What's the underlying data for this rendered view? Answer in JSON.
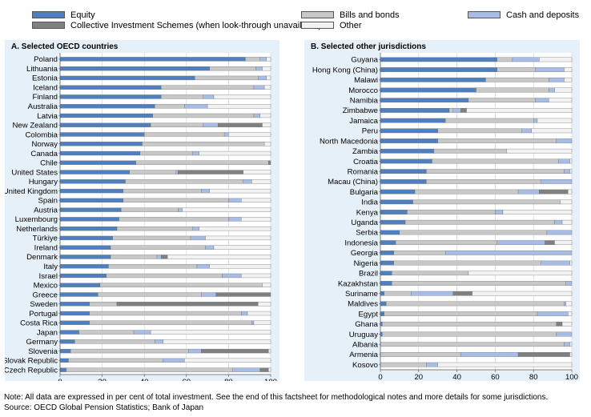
{
  "legend": {
    "items": [
      {
        "label": "Equity",
        "color": "#4f7fbf"
      },
      {
        "label": "Collective Investment Schemes (when look-through unavailable)",
        "color": "#808080"
      },
      {
        "label": "Bills and bonds",
        "color": "#c8c8c8"
      },
      {
        "label": "Other",
        "color": "#f2f2f2"
      },
      {
        "label": "Cash and deposits",
        "color": "#a7bde6"
      }
    ]
  },
  "colors": {
    "equity": "#4f7fbf",
    "cis": "#808080",
    "bills": "#c8c8c8",
    "other": "#f2f2f2",
    "cash": "#a7bde6",
    "panel_bg": "#e6f0f8"
  },
  "chart_data": [
    {
      "type": "bar",
      "orientation": "horizontal",
      "stacked": true,
      "title": "A. Selected OECD countries",
      "xlim": [
        0,
        100
      ],
      "xticks": [
        0,
        20,
        40,
        60,
        80,
        100
      ],
      "series_order": [
        "equity",
        "bills",
        "cash",
        "cis",
        "other"
      ],
      "categories": [
        "Poland",
        "Lithuania",
        "Estonia",
        "Iceland",
        "Finland",
        "Australia",
        "Latvia",
        "New Zealand",
        "Colombia",
        "Norway",
        "Canada",
        "Chile",
        "United States",
        "Hungary",
        "United Kingdom",
        "Spain",
        "Austria",
        "Luxembourg",
        "Netherlands",
        "Türkiye",
        "Ireland",
        "Denmark",
        "Italy",
        "Israel",
        "Mexico",
        "Greece",
        "Sweden",
        "Portugal",
        "Costa Rica",
        "Japan",
        "Germany",
        "Slovenia",
        "Slovak Republic",
        "Czech Republic"
      ],
      "series": [
        {
          "key": "equity",
          "name": "Equity",
          "values": [
            88,
            71,
            64,
            48,
            48,
            45,
            44,
            43,
            40,
            39,
            38,
            36,
            33,
            31,
            30,
            30,
            29,
            28,
            27,
            25,
            24,
            24,
            23,
            22,
            19,
            18,
            14,
            14,
            14,
            9,
            7,
            5,
            4,
            3
          ]
        },
        {
          "key": "bills",
          "name": "Bills and bonds",
          "values": [
            7,
            22,
            30,
            44,
            20,
            14,
            48,
            25,
            38,
            58,
            25,
            63,
            22,
            56,
            37,
            50,
            27,
            52,
            36,
            37,
            45,
            22,
            42,
            55,
            77,
            49,
            13,
            72,
            77,
            26,
            38,
            56,
            45,
            79
          ]
        },
        {
          "key": "cash",
          "name": "Cash and deposits",
          "values": [
            3,
            3,
            4,
            5,
            5,
            11,
            3,
            7,
            2,
            0,
            3,
            0,
            1,
            4,
            4,
            6,
            2,
            6,
            3,
            7,
            4,
            2,
            6,
            9,
            0,
            7,
            0,
            3,
            1,
            8,
            4,
            6,
            10,
            13
          ]
        },
        {
          "key": "cis",
          "name": "Collective Investment Schemes (when look-through unavailable)",
          "values": [
            0,
            0,
            0,
            0,
            0,
            0,
            0,
            21,
            0,
            0,
            0,
            1,
            31,
            0,
            0,
            0,
            0,
            0,
            0,
            0,
            0,
            3,
            0,
            0,
            0,
            26,
            67,
            0,
            0,
            0,
            0,
            32,
            0,
            4
          ]
        },
        {
          "key": "other",
          "name": "Other",
          "values": [
            2,
            4,
            2,
            3,
            27,
            30,
            5,
            4,
            20,
            3,
            34,
            0,
            13,
            9,
            29,
            14,
            42,
            14,
            34,
            31,
            27,
            49,
            29,
            14,
            4,
            0,
            6,
            11,
            8,
            57,
            51,
            1,
            41,
            1
          ]
        }
      ]
    },
    {
      "type": "bar",
      "orientation": "horizontal",
      "stacked": true,
      "title": "B. Selected other jurisdictions",
      "xlim": [
        0,
        100
      ],
      "xticks": [
        0,
        20,
        40,
        60,
        80,
        100
      ],
      "series_order": [
        "equity",
        "bills",
        "cash",
        "cis",
        "other"
      ],
      "categories": [
        "Guyana",
        "Hong Kong (China)",
        "Malawi",
        "Morocco",
        "Namibia",
        "Zimbabwe",
        "Jamaica",
        "Peru",
        "North Macedonia",
        "Zambia",
        "Croatia",
        "Romania",
        "Macau (China)",
        "Bulgaria",
        "India",
        "Kenya",
        "Uganda",
        "Serbia",
        "Indonesia",
        "Georgia",
        "Nigeria",
        "Brazil",
        "Kazakhstan",
        "Suriname",
        "Maldives",
        "Egypt",
        "Ghana",
        "Uruguay",
        "Albania",
        "Armenia",
        "Kosovo"
      ],
      "series": [
        {
          "key": "equity",
          "name": "Equity",
          "values": [
            61,
            61,
            55,
            50,
            46,
            36,
            34,
            30,
            30,
            28,
            27,
            24,
            24,
            18,
            17,
            14,
            13,
            10,
            8,
            7,
            7,
            6,
            6,
            2,
            3,
            2,
            1,
            1,
            0,
            0,
            0
          ]
        },
        {
          "key": "bills",
          "name": "Bills and bonds",
          "values": [
            8,
            20,
            33,
            38,
            35,
            2,
            46,
            44,
            62,
            38,
            66,
            72,
            60,
            54,
            77,
            46,
            78,
            77,
            53,
            27,
            77,
            40,
            91,
            14,
            93,
            80,
            91,
            91,
            96,
            42,
            24
          ]
        },
        {
          "key": "cash",
          "name": "Cash and deposits",
          "values": [
            14,
            15,
            8,
            3,
            7,
            4,
            2,
            5,
            8,
            0,
            6,
            3,
            16,
            11,
            0,
            4,
            4,
            13,
            25,
            66,
            15,
            0,
            3,
            22,
            1,
            16,
            0,
            8,
            3,
            30,
            6
          ]
        },
        {
          "key": "cis",
          "name": "Collective Investment Schemes (when look-through unavailable)",
          "values": [
            0,
            0,
            0,
            0,
            0,
            3,
            0,
            0,
            0,
            0,
            0,
            0,
            0,
            15,
            0,
            0,
            0,
            0,
            5,
            0,
            0,
            0,
            0,
            10,
            0,
            0,
            3,
            0,
            0,
            27,
            0
          ]
        },
        {
          "key": "other",
          "name": "Other",
          "values": [
            17,
            4,
            4,
            9,
            12,
            55,
            18,
            21,
            0,
            34,
            1,
            1,
            0,
            2,
            6,
            36,
            5,
            0,
            9,
            0,
            1,
            54,
            0,
            52,
            3,
            2,
            5,
            0,
            1,
            1,
            70
          ]
        }
      ]
    }
  ],
  "notes": {
    "note": "Note: All data are expressed in per cent of total investment. See the end of this factsheet for methodological notes and more details for some jurisdictions.",
    "source": "Source: OECD Global Pension Statistics; Bank of Japan"
  }
}
